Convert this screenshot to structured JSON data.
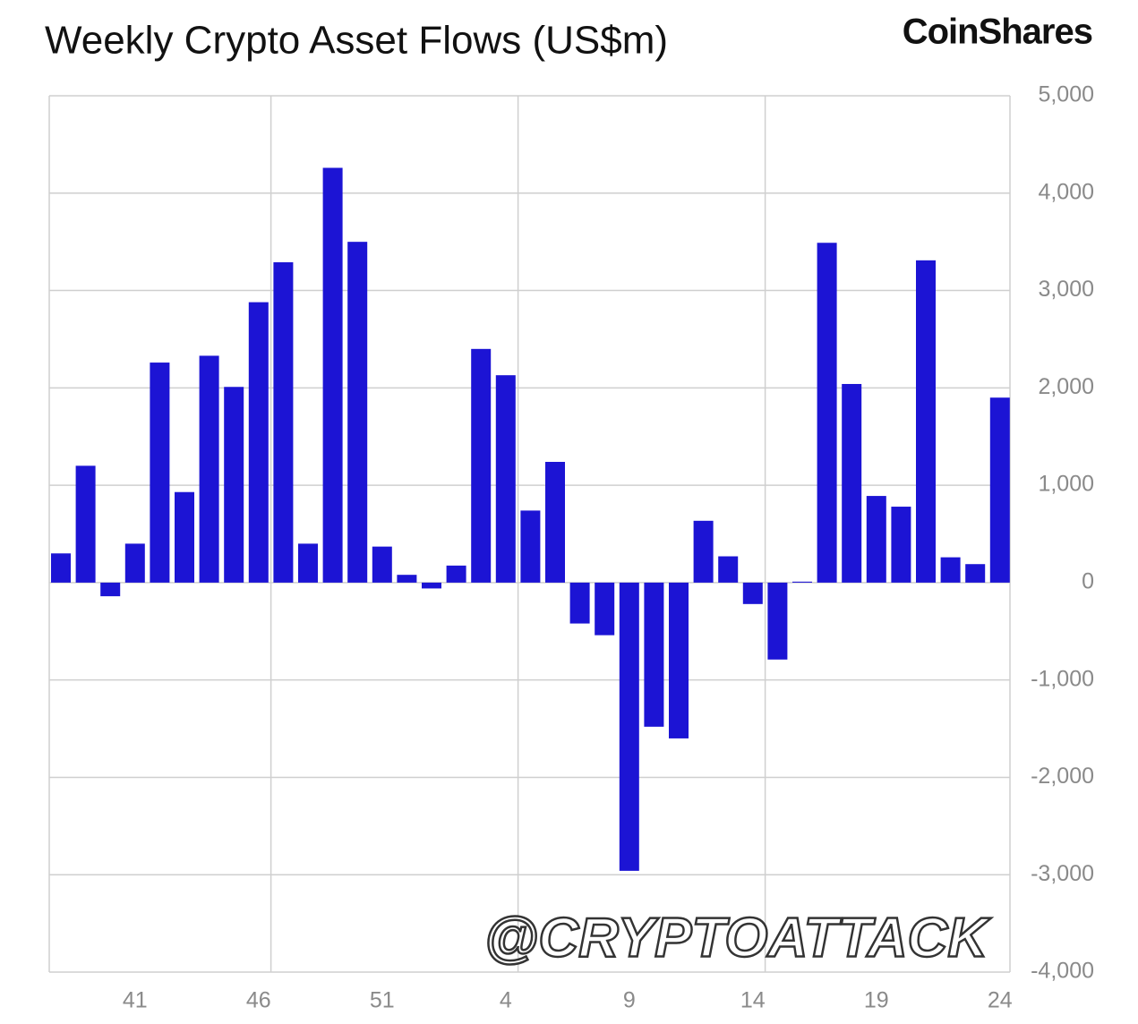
{
  "chart_data": {
    "type": "bar",
    "title": "Weekly Crypto Asset Flows (US$m)",
    "brand": "CoinShares",
    "watermark": "@CRYPTOATTACK",
    "categories": [
      null,
      null,
      null,
      "41",
      null,
      null,
      null,
      null,
      "46",
      null,
      null,
      null,
      null,
      "51",
      null,
      null,
      null,
      null,
      "4",
      null,
      null,
      null,
      null,
      "9",
      null,
      null,
      null,
      null,
      "14",
      null,
      null,
      null,
      null,
      "19",
      null,
      null,
      null,
      null,
      "24"
    ],
    "values": [
      300,
      1200,
      -140,
      400,
      2260,
      930,
      2330,
      2010,
      2880,
      3290,
      400,
      4260,
      3500,
      370,
      80,
      -60,
      175,
      2400,
      2130,
      740,
      1240,
      -420,
      -540,
      -2960,
      -1480,
      -1600,
      635,
      270,
      -220,
      -790,
      10,
      3490,
      2040,
      890,
      780,
      3310,
      260,
      190,
      1900
    ],
    "color": "#1c14d4",
    "ylim": [
      -4000,
      5000
    ],
    "yticks": [
      {
        "value": -4000,
        "label": "-4,000"
      },
      {
        "value": -3000,
        "label": "-3,000"
      },
      {
        "value": -2000,
        "label": "-2,000"
      },
      {
        "value": -1000,
        "label": "-1,000"
      },
      0,
      {
        "value": 1000,
        "label": "1,000"
      },
      {
        "value": 2000,
        "label": "2,000"
      },
      {
        "value": 3000,
        "label": "3,000"
      },
      {
        "value": 4000,
        "label": "4,000"
      },
      {
        "value": 5000,
        "label": "5,000"
      }
    ],
    "grid": true,
    "y_axis_side": "right"
  }
}
